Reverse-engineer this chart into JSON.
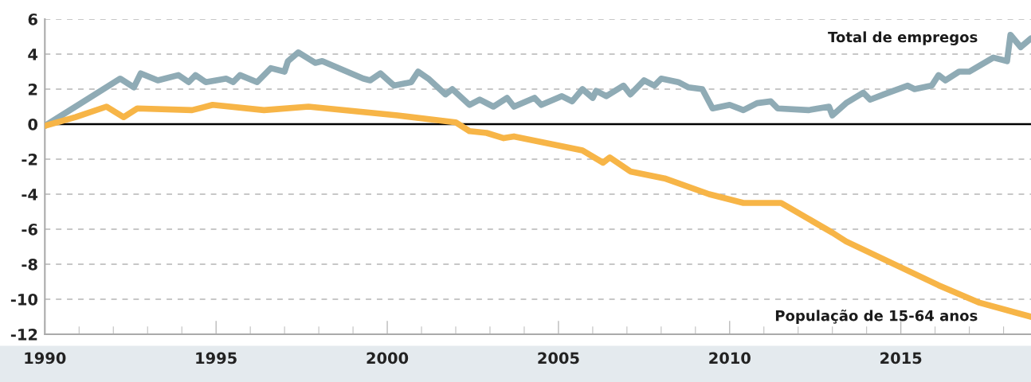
{
  "chart_data": {
    "type": "line",
    "xlim": [
      1990,
      2018.8
    ],
    "ylim": [
      -12,
      6
    ],
    "yticks": [
      -12,
      -10,
      -8,
      -6,
      -4,
      -2,
      0,
      2,
      4,
      6
    ],
    "xticks": [
      1990,
      {
        "value": 1991,
        "label": null
      },
      {
        "value": 1992,
        "label": null
      },
      {
        "value": 1993,
        "label": null
      },
      {
        "value": 1994,
        "label": null
      },
      1995,
      {
        "value": 1996,
        "label": null
      },
      {
        "value": 1997,
        "label": null
      },
      {
        "value": 1998,
        "label": null
      },
      {
        "value": 1999,
        "label": null
      },
      2000,
      {
        "value": 2001,
        "label": null
      },
      {
        "value": 2002,
        "label": null
      },
      {
        "value": 2003,
        "label": null
      },
      {
        "value": 2004,
        "label": null
      },
      2005,
      {
        "value": 2006,
        "label": null
      },
      {
        "value": 2007,
        "label": null
      },
      {
        "value": 2008,
        "label": null
      },
      {
        "value": 2009,
        "label": null
      },
      2010,
      {
        "value": 2011,
        "label": null
      },
      {
        "value": 2012,
        "label": null
      },
      {
        "value": 2013,
        "label": null
      },
      {
        "value": 2014,
        "label": null
      },
      2015,
      {
        "value": 2016,
        "label": null
      },
      {
        "value": 2017,
        "label": null
      },
      {
        "value": 2018,
        "label": null
      }
    ],
    "grid": "y",
    "marker": "none",
    "line_style": "solid",
    "legend": false,
    "ref_lines": [
      {
        "axis": "y",
        "value": 0,
        "color": "#000000",
        "line_style": "solid"
      }
    ],
    "series": [
      {
        "name": "Total de empregos",
        "color": "#8fabb5",
        "x": [
          1990,
          1992.2,
          1992.6,
          1992.8,
          1993.3,
          1993.9,
          1994.2,
          1994.4,
          1994.7,
          1995.3,
          1995.5,
          1995.7,
          1996.2,
          1996.6,
          1997.0,
          1997.1,
          1997.4,
          1997.9,
          1998.1,
          1999.3,
          1999.5,
          1999.8,
          2000.2,
          2000.7,
          2000.9,
          2001.2,
          2001.7,
          2001.9,
          2002.4,
          2002.7,
          2003.1,
          2003.5,
          2003.7,
          2004.3,
          2004.5,
          2005.1,
          2005.4,
          2005.7,
          2006.0,
          2006.1,
          2006.4,
          2006.9,
          2007.1,
          2007.5,
          2007.8,
          2008.0,
          2008.5,
          2008.8,
          2009.2,
          2009.5,
          2010.0,
          2010.4,
          2010.8,
          2011.2,
          2011.4,
          2012.3,
          2012.9,
          2013.0,
          2013.4,
          2013.9,
          2014.1,
          2014.5,
          2015.2,
          2015.4,
          2015.9,
          2016.1,
          2016.3,
          2016.7,
          2017.0,
          2017.7,
          2018.1,
          2018.2,
          2018.5,
          2018.8
        ],
        "values": [
          -0.1,
          2.6,
          2.1,
          2.9,
          2.5,
          2.8,
          2.4,
          2.8,
          2.4,
          2.6,
          2.4,
          2.8,
          2.4,
          3.2,
          3.0,
          3.6,
          4.1,
          3.5,
          3.6,
          2.6,
          2.5,
          2.9,
          2.2,
          2.4,
          3.0,
          2.6,
          1.7,
          2.0,
          1.1,
          1.4,
          1.0,
          1.5,
          1.0,
          1.5,
          1.1,
          1.6,
          1.3,
          2.0,
          1.5,
          1.9,
          1.6,
          2.2,
          1.7,
          2.5,
          2.2,
          2.6,
          2.4,
          2.1,
          2.0,
          0.9,
          1.1,
          0.8,
          1.2,
          1.3,
          0.9,
          0.8,
          1.0,
          0.5,
          1.2,
          1.8,
          1.4,
          1.7,
          2.2,
          2.0,
          2.2,
          2.8,
          2.5,
          3.0,
          3.0,
          3.8,
          3.6,
          5.1,
          4.4,
          4.9
        ]
      },
      {
        "name": "População de 15-64 anos",
        "color": "#f7b547",
        "x": [
          1990,
          1990.9,
          1991.8,
          1992.3,
          1992.7,
          1994.3,
          1994.9,
          1996.4,
          1997.7,
          2000.3,
          2002.0,
          2002.4,
          2002.9,
          2003.4,
          2003.7,
          2005.7,
          2006.3,
          2006.5,
          2007.1,
          2008.1,
          2009.4,
          2010.4,
          2011.5,
          2013.0,
          2013.4,
          2016.1,
          2017.3,
          2018.8
        ],
        "values": [
          -0.1,
          0.4,
          1.0,
          0.4,
          0.9,
          0.8,
          1.1,
          0.8,
          1.0,
          0.5,
          0.1,
          -0.4,
          -0.5,
          -0.8,
          -0.7,
          -1.5,
          -2.2,
          -1.9,
          -2.7,
          -3.1,
          -4.0,
          -4.5,
          -4.5,
          -6.2,
          -6.7,
          -9.2,
          -10.2,
          -11.0
        ]
      }
    ]
  }
}
